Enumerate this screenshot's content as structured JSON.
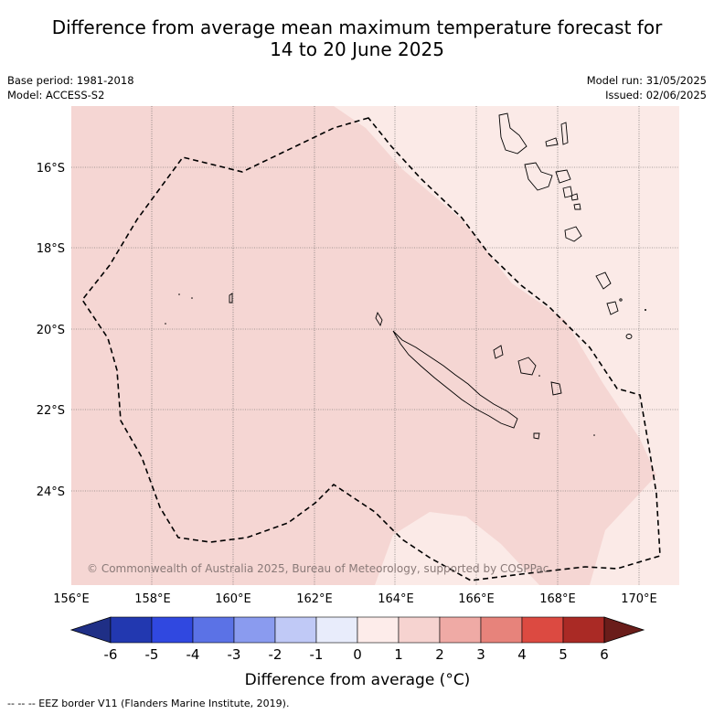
{
  "title": {
    "line1": "Difference from average mean maximum temperature forecast for",
    "line2": "14 to 20 June 2025"
  },
  "meta": {
    "base_period": "Base period: 1981-2018",
    "model": "Model: ACCESS-S2",
    "model_run": "Model run: 31/05/2025",
    "issued": "Issued: 02/06/2025"
  },
  "map": {
    "copyright": "© Commonwealth of Australia 2025, Bureau of Meteorology, supported by COSPPac",
    "lat_labels": [
      "16°S",
      "18°S",
      "20°S",
      "22°S",
      "24°S"
    ],
    "lon_labels": [
      "156°E",
      "158°E",
      "160°E",
      "162°E",
      "164°E",
      "166°E",
      "168°E",
      "170°E"
    ],
    "colors": {
      "zero_to_one": "#fbeae7",
      "one_to_two": "#f5d6d3",
      "eez_line": "#000000"
    },
    "features": [
      "New Caledonia",
      "Vanuatu",
      "Loyalty Islands",
      "Chesterfield Islands"
    ]
  },
  "colorbar": {
    "tick_labels": [
      "-6",
      "-5",
      "-4",
      "-3",
      "-2",
      "-1",
      "0",
      "1",
      "2",
      "3",
      "4",
      "5",
      "6"
    ],
    "colors": [
      "#1f2f86",
      "#2238b0",
      "#3048e0",
      "#5b72e6",
      "#8a9bef",
      "#c0c9f6",
      "#e8ecfb",
      "#fdecea",
      "#f6d3d0",
      "#efaaa5",
      "#e7837b",
      "#dc4a41",
      "#aa2a25",
      "#6a1d1a"
    ],
    "label": "Difference from average (",
    "label_unit": "°C)"
  },
  "footer": "-- -- -- EEZ border V11 (Flanders Marine Institute, 2019)."
}
